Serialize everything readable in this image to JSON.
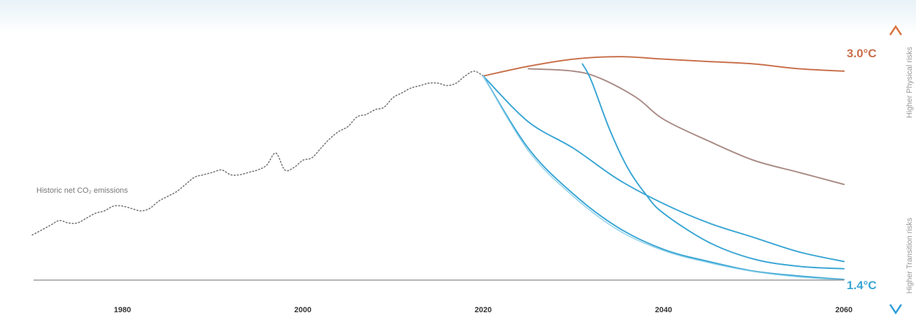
{
  "chart_data": {
    "type": "line",
    "title": "",
    "xlabel": "",
    "ylabel": "",
    "xlim": [
      1970,
      2063
    ],
    "ylim": [
      0,
      100
    ],
    "x_ticks": [
      1980,
      2000,
      2020,
      2040,
      2060
    ],
    "grid": false,
    "annotations": {
      "historic_label": "Historic net CO₂ emissions",
      "upper_end_label": "3.0°C",
      "lower_end_label": "1.4°C",
      "axis_top_label": "Higher Physical risks",
      "axis_bottom_label": "Higher Transition risks"
    },
    "colors": {
      "historic": "#777777",
      "hot": "#c8704a",
      "mid": "#a98c86",
      "cool": "#3aa6d4",
      "cool_light": "#8fd0ea",
      "baseline": "#888888",
      "arrow_top": "#d9733f",
      "arrow_bottom": "#2f9fd8",
      "label_hot": "#c8704a",
      "label_cool": "#3aa6d4"
    },
    "historic": {
      "x": [
        1970,
        1971,
        1972,
        1973,
        1974,
        1975,
        1976,
        1977,
        1978,
        1979,
        1980,
        1981,
        1982,
        1983,
        1984,
        1985,
        1986,
        1987,
        1988,
        1989,
        1990,
        1991,
        1992,
        1993,
        1994,
        1995,
        1996,
        1997,
        1998,
        1999,
        2000,
        2001,
        2002,
        2003,
        2004,
        2005,
        2006,
        2007,
        2008,
        2009,
        2010,
        2011,
        2012,
        2013,
        2014,
        2015,
        2016,
        2017,
        2018,
        2019,
        2020
      ],
      "y": [
        19,
        21,
        23,
        25,
        24,
        24,
        26,
        28,
        29,
        31,
        31,
        30,
        29,
        30,
        33,
        35,
        37,
        40,
        43,
        44,
        45,
        46,
        44,
        44,
        45,
        46,
        48,
        53,
        46,
        47,
        50,
        51,
        55,
        59,
        62,
        64,
        68,
        69,
        71,
        72,
        76,
        78,
        80,
        81,
        82,
        82,
        81,
        82,
        85,
        87,
        85
      ]
    },
    "series": [
      {
        "color_key": "hot",
        "x": [
          2020,
          2025,
          2030,
          2035,
          2040,
          2045,
          2050,
          2055,
          2060
        ],
        "y": [
          85,
          89,
          92,
          93,
          92,
          91,
          90,
          88,
          87
        ]
      },
      {
        "color_key": "mid",
        "x": [
          2025,
          2030,
          2033,
          2037,
          2040,
          2045,
          2050,
          2055,
          2060
        ],
        "y": [
          88,
          87,
          84,
          76,
          67,
          58,
          50,
          45,
          40
        ]
      },
      {
        "color_key": "cool",
        "x": [
          2031,
          2032,
          2034,
          2036,
          2038,
          2040,
          2045,
          2050,
          2055,
          2060
        ],
        "y": [
          90,
          83,
          63,
          47,
          36,
          28,
          16,
          9,
          6,
          5
        ]
      },
      {
        "color_key": "cool",
        "x": [
          2020,
          2025,
          2030,
          2035,
          2040,
          2045,
          2050,
          2055,
          2060
        ],
        "y": [
          85,
          66,
          55,
          42,
          32,
          24,
          18,
          12,
          8
        ]
      },
      {
        "color_key": "cool",
        "x": [
          2020,
          2025,
          2030,
          2035,
          2040,
          2045,
          2050,
          2055,
          2060
        ],
        "y": [
          85,
          55,
          36,
          22,
          13,
          8,
          4,
          2,
          0.5
        ]
      },
      {
        "color_key": "cool_light",
        "x": [
          2020,
          2025,
          2030,
          2035,
          2040,
          2045,
          2050,
          2055,
          2060
        ],
        "y": [
          85,
          54,
          35,
          21,
          12.5,
          7.5,
          3.8,
          1.6,
          0.3
        ]
      }
    ]
  }
}
